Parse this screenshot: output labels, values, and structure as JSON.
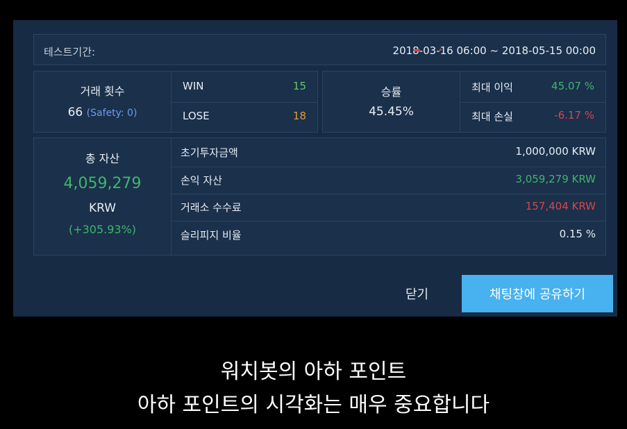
{
  "period": {
    "label": "테스트기간:",
    "value": "2018-03-16 06:00 ~ 2018-05-15 00:00"
  },
  "trades": {
    "label": "거래 횟수",
    "count": "66",
    "safety": "(Safety: 0)",
    "win_label": "WIN",
    "win_value": "15",
    "lose_label": "LOSE",
    "lose_value": "18"
  },
  "winrate": {
    "label": "승률",
    "value": "45.45%",
    "max_profit_label": "최대 이익",
    "max_profit_value": "45.07 %",
    "max_loss_label": "최대 손실",
    "max_loss_value": "-6.17 %"
  },
  "assets": {
    "label": "총 자산",
    "value": "4,059,279",
    "unit": "KRW",
    "change": "(+305.93%)",
    "rows": [
      {
        "label": "초기투자금액",
        "value": "1,000,000 KRW"
      },
      {
        "label": "손익 자산",
        "value": "3,059,279 KRW"
      },
      {
        "label": "거래소 수수료",
        "value": "157,404 KRW"
      },
      {
        "label": "슬리피지 비율",
        "value": "0.15 %"
      }
    ]
  },
  "buttons": {
    "close": "닫기",
    "share": "채팅창에 공유하기"
  },
  "subtitle": {
    "line1": "워치봇의 아하 포인트",
    "line2": "아하 포인트의 시각화는 매우 중요합니다"
  },
  "colors": {
    "panel": "#172b44",
    "positive": "#3fb66b",
    "negative": "#d8454f",
    "win": "#5ec86a",
    "lose": "#e39a3c",
    "safety": "#6d9ee8",
    "accent_button": "#48b1ef"
  }
}
